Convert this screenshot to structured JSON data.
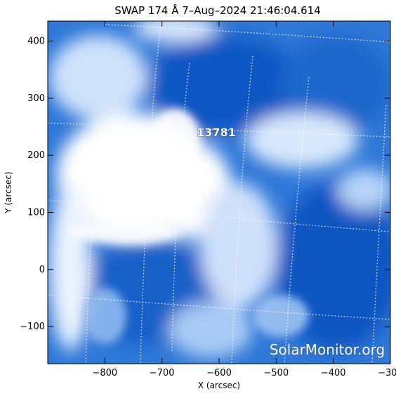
{
  "title": "SWAP 174 Å  7–Aug–2024 21:46:04.614",
  "x_axis": {
    "label": "X (arcsec)",
    "range": [
      -900,
      -300
    ],
    "ticks": [
      -800,
      -700,
      -600,
      -500,
      -400,
      -300
    ],
    "tick_labels": [
      "−800",
      "−700",
      "−600",
      "−500",
      "−400",
      "−300"
    ]
  },
  "y_axis": {
    "label": "Y (arcsec)",
    "range": [
      -165,
      435
    ],
    "ticks": [
      -100,
      0,
      100,
      200,
      300,
      400
    ],
    "tick_labels": [
      "−100",
      "0",
      "100",
      "200",
      "300",
      "400"
    ]
  },
  "active_region": {
    "label": "13781"
  },
  "watermark": "SolarMonitor.org",
  "colors": {
    "bright": "#ffffff",
    "mid": "#4f8fe0",
    "dark": "#0a55c8"
  }
}
